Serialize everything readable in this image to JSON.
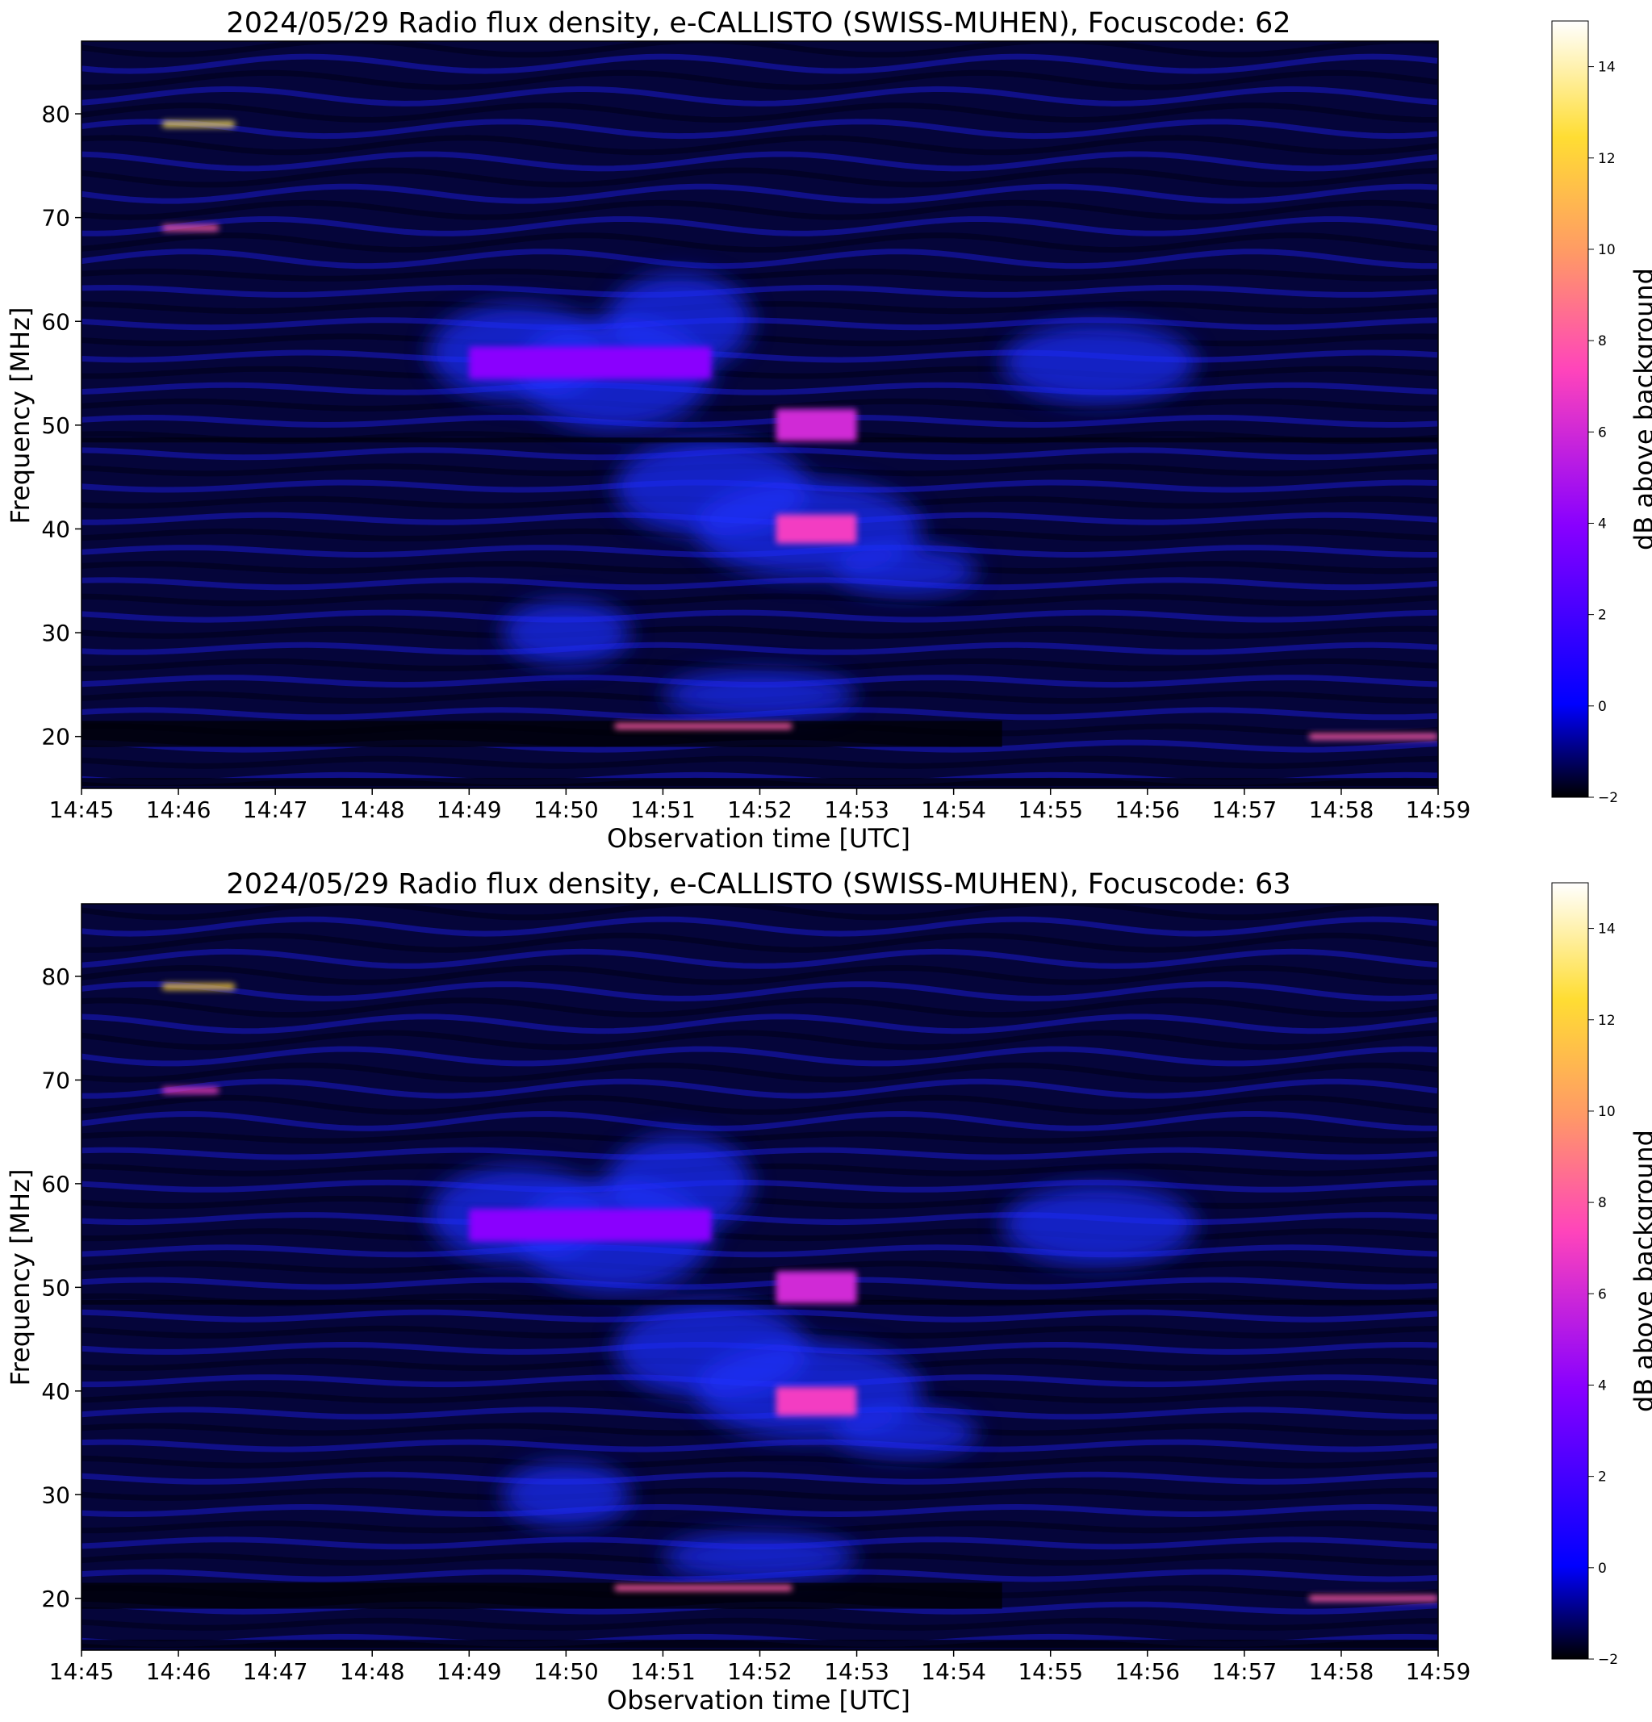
{
  "chart_data": [
    {
      "type": "heatmap",
      "title": "2024/05/29  Radio flux density, e-CALLISTO (SWISS-MUHEN), Focuscode: 62",
      "xlabel": "Observation time [UTC]",
      "ylabel": "Frequency [MHz]",
      "x_ticks": [
        "14:45",
        "14:46",
        "14:47",
        "14:48",
        "14:49",
        "14:50",
        "14:51",
        "14:52",
        "14:53",
        "14:54",
        "14:55",
        "14:56",
        "14:57",
        "14:58",
        "14:59"
      ],
      "y_ticks": [
        20,
        30,
        40,
        50,
        60,
        70,
        80
      ],
      "xlim": [
        "14:45",
        "14:59"
      ],
      "ylim": [
        15,
        87
      ],
      "colorbar": {
        "label": "dB above background",
        "ticks": [
          -2,
          0,
          2,
          4,
          6,
          8,
          10,
          12,
          14
        ],
        "range": [
          -2,
          15
        ],
        "colormap": [
          "#000000",
          "#0000ff",
          "#8800ff",
          "#ff44bb",
          "#ff9966",
          "#ffdd33",
          "#ffffff"
        ]
      },
      "features": [
        {
          "t_start": "14:45:50",
          "t_end": "14:46:35",
          "freq": 79,
          "db": 13
        },
        {
          "t_start": "14:45:50",
          "t_end": "14:46:25",
          "freq": 69,
          "db": 8
        },
        {
          "t_start": "14:52:10",
          "t_end": "14:53:00",
          "freq": 40,
          "db": 7
        },
        {
          "t_start": "14:50:30",
          "t_end": "14:52:20",
          "freq": 21,
          "db": 8
        },
        {
          "t_start": "14:57:40",
          "t_end": "14:59:00",
          "freq": 20,
          "db": 8
        },
        {
          "t_start": "14:49:00",
          "t_end": "14:51:30",
          "freq": 56,
          "db": 4
        },
        {
          "t_start": "14:52:10",
          "t_end": "14:53:00",
          "freq": 50,
          "db": 6
        }
      ]
    },
    {
      "type": "heatmap",
      "title": "2024/05/29  Radio flux density, e-CALLISTO (SWISS-MUHEN), Focuscode: 63",
      "xlabel": "Observation time [UTC]",
      "ylabel": "Frequency [MHz]",
      "x_ticks": [
        "14:45",
        "14:46",
        "14:47",
        "14:48",
        "14:49",
        "14:50",
        "14:51",
        "14:52",
        "14:53",
        "14:54",
        "14:55",
        "14:56",
        "14:57",
        "14:58",
        "14:59"
      ],
      "y_ticks": [
        20,
        30,
        40,
        50,
        60,
        70,
        80
      ],
      "xlim": [
        "14:45",
        "14:59"
      ],
      "ylim": [
        15,
        87
      ],
      "colorbar": {
        "label": "dB above background",
        "ticks": [
          -2,
          0,
          2,
          4,
          6,
          8,
          10,
          12,
          14
        ],
        "range": [
          -2,
          15
        ],
        "colormap": [
          "#000000",
          "#0000ff",
          "#8800ff",
          "#ff44bb",
          "#ff9966",
          "#ffdd33",
          "#ffffff"
        ]
      },
      "features": [
        {
          "t_start": "14:45:50",
          "t_end": "14:46:35",
          "freq": 79,
          "db": 12
        },
        {
          "t_start": "14:45:50",
          "t_end": "14:46:25",
          "freq": 69,
          "db": 7
        },
        {
          "t_start": "14:52:10",
          "t_end": "14:53:00",
          "freq": 39,
          "db": 7
        },
        {
          "t_start": "14:50:30",
          "t_end": "14:52:20",
          "freq": 21,
          "db": 8
        },
        {
          "t_start": "14:57:40",
          "t_end": "14:59:00",
          "freq": 20,
          "db": 8
        },
        {
          "t_start": "14:49:00",
          "t_end": "14:51:30",
          "freq": 56,
          "db": 4
        },
        {
          "t_start": "14:52:10",
          "t_end": "14:53:00",
          "freq": 50,
          "db": 6
        }
      ]
    }
  ]
}
